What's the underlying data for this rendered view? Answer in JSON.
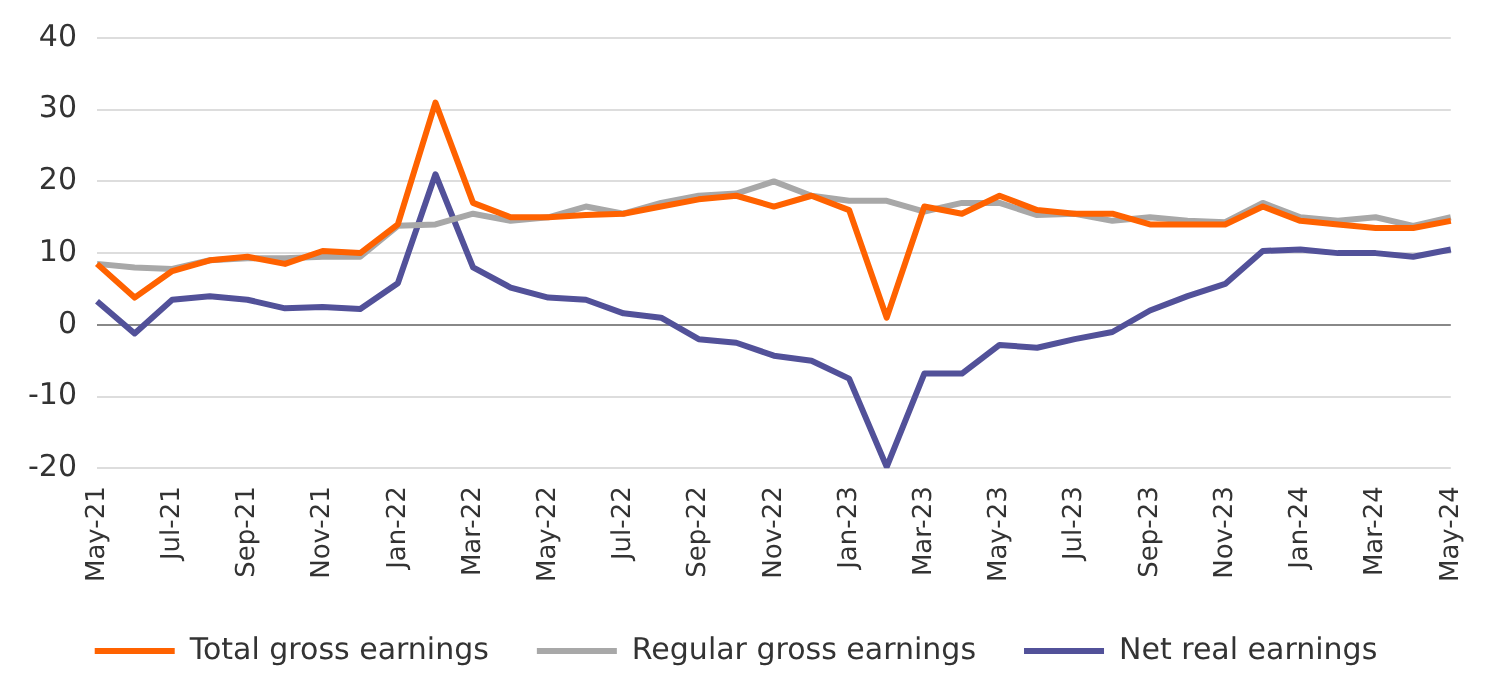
{
  "chart_data": {
    "type": "line",
    "categories": [
      "May-21",
      null,
      "Jul-21",
      null,
      "Sep-21",
      null,
      "Nov-21",
      null,
      "Jan-22",
      null,
      "Mar-22",
      null,
      "May-22",
      null,
      "Jul-22",
      null,
      "Sep-22",
      null,
      "Nov-22",
      null,
      "Jan-23",
      null,
      "Mar-23",
      null,
      "May-23",
      null,
      "Jul-23",
      null,
      "Sep-23",
      null,
      "Nov-23",
      null,
      "Jan-24",
      null,
      "Mar-24",
      null,
      "May-24"
    ],
    "series": [
      {
        "name": "Total gross earnings",
        "color": "#ff6200",
        "values": [
          8.5,
          3.8,
          7.5,
          9,
          9.5,
          8.5,
          10.3,
          10,
          14,
          31,
          17,
          15,
          15,
          15.3,
          15.5,
          16.5,
          17.5,
          18,
          16.5,
          18,
          16,
          1,
          16.5,
          15.5,
          18,
          16,
          15.5,
          15.5,
          14,
          14,
          14,
          16.5,
          14.5,
          14,
          13.5,
          13.5,
          14.5
        ]
      },
      {
        "name": "Regular gross earnings",
        "color": "#a8a8a8",
        "values": [
          8.5,
          8,
          7.8,
          9,
          9.3,
          9.3,
          9.5,
          9.5,
          13.8,
          14,
          15.5,
          14.5,
          15,
          16.5,
          15.5,
          17,
          18,
          18.3,
          20,
          18,
          17.3,
          17.3,
          15.8,
          17,
          17,
          15.3,
          15.5,
          14.5,
          15,
          14.5,
          14.3,
          17,
          15,
          14.5,
          15,
          13.8,
          15
        ]
      },
      {
        "name": "Net real earnings",
        "color": "#525199",
        "values": [
          3.3,
          -1.2,
          3.5,
          4,
          3.5,
          2.3,
          2.5,
          2.2,
          5.8,
          21,
          8,
          5.2,
          3.8,
          3.5,
          1.6,
          1,
          -2,
          -2.5,
          -4.3,
          -5,
          -7.5,
          -19.8,
          -6.8,
          -6.8,
          -2.8,
          -3.2,
          -2,
          -1,
          2,
          4,
          5.7,
          10.3,
          10.5,
          10,
          10,
          9.5,
          10.5
        ]
      }
    ],
    "ylim": [
      -20,
      40
    ],
    "yticks": [
      -20,
      -10,
      0,
      10,
      20,
      30,
      40
    ],
    "grid": "y",
    "legend": "bottom",
    "marker": "none",
    "line_style": "solid"
  }
}
